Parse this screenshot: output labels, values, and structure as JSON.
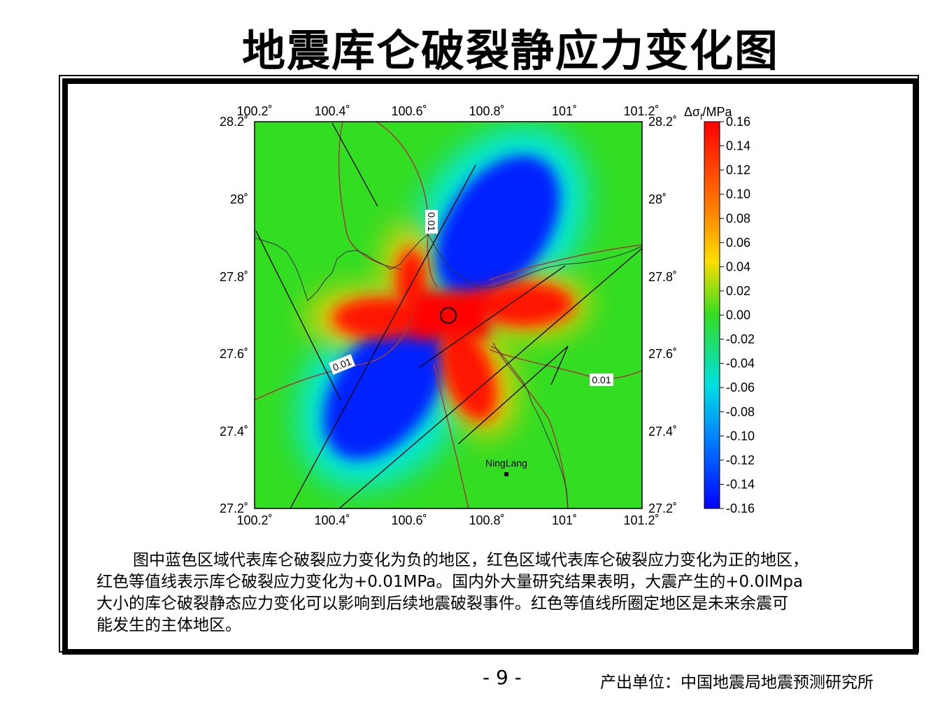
{
  "page": {
    "title": "地震库仑破裂静应力变化图",
    "page_number": "- 9 -",
    "producer": "产出单位：中国地震局地震预测研究所"
  },
  "map": {
    "lon_labels": [
      "100.2˚",
      "100.4˚",
      "100.6˚",
      "100.8˚",
      "101˚",
      "101.2˚"
    ],
    "lat_labels": [
      "28.2˚",
      "28˚",
      "27.8˚",
      "27.6˚",
      "27.4˚",
      "27.2˚"
    ],
    "lon_range": [
      100.2,
      101.2
    ],
    "lat_range": [
      27.2,
      28.2
    ],
    "colorbar": {
      "title_delta": "Δσ",
      "title_sub": "f",
      "title_unit": "/MPa",
      "ticks": [
        "0.16",
        "0.14",
        "0.12",
        "0.10",
        "0.08",
        "0.06",
        "0.04",
        "0.02",
        "0.00",
        "-0.02",
        "-0.04",
        "-0.06",
        "-0.08",
        "-0.10",
        "-0.12",
        "-0.14",
        "-0.16"
      ]
    },
    "contour_labels": [
      "0.01",
      "0.01",
      "0.01"
    ],
    "city": {
      "name": "NingLang",
      "lon": 100.85,
      "lat": 27.29
    },
    "epicenter": {
      "lon": 100.7,
      "lat": 27.7
    },
    "colors": {
      "positive": "#ff0000",
      "negative": "#0000ff",
      "neutral": "#33dd22",
      "contour": "#a03c3c"
    }
  },
  "description": {
    "line1": "图中蓝色区域代表库仑破裂应力变化为负的地区，红色区域代表库仑破裂应力变化为正的地区，",
    "line2": "红色等值线表示库仑破裂应力变化为+0.01MPa。国内外大量研究结果表明，大震产生的+0.0lMpa",
    "line3": "大小的库仑破裂静态应力变化可以影响到后续地震破裂事件。红色等值线所圈定地区是未来余震可",
    "line4": "能发生的主体地区。"
  }
}
